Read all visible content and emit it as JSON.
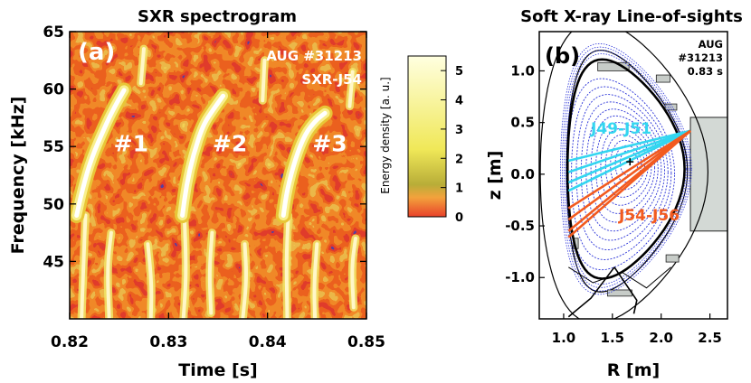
{
  "chart_data": [
    {
      "type": "heatmap",
      "title": "SXR spectrogram",
      "xlabel": "Time [s]",
      "ylabel": "Frequency [kHz]",
      "xlim": [
        0.82,
        0.85
      ],
      "ylim": [
        40,
        65
      ],
      "xticks": [
        "0.82",
        "0.83",
        "0.84",
        "0.85"
      ],
      "yticks": [
        "45",
        "50",
        "55",
        "60",
        "65"
      ],
      "panel_label": "(a)",
      "shot_text": [
        "AUG #31213",
        "SXR-J54"
      ],
      "colorbar": {
        "label": "Energy density [a. u.]",
        "ticks": [
          "0",
          "1",
          "2",
          "3",
          "4",
          "5"
        ],
        "range": [
          0,
          5.5
        ],
        "colors": [
          "#e8412a",
          "#f3a23c",
          "#b8ad38",
          "#f0e858",
          "#ffffe0"
        ]
      },
      "background_color": "#e0621e",
      "chirps": [
        {
          "label": "#1",
          "points": [
            [
              0.8207,
              49
            ],
            [
              0.8213,
              51.3
            ],
            [
              0.8222,
              54
            ],
            [
              0.8235,
              56.6
            ],
            [
              0.8245,
              58.4
            ],
            [
              0.8255,
              59.9
            ]
          ]
        },
        {
          "label": "#2",
          "points": [
            [
              0.8314,
              49
            ],
            [
              0.8318,
              51.6
            ],
            [
              0.8325,
              54.3
            ],
            [
              0.8335,
              56.9
            ],
            [
              0.8345,
              58.2
            ],
            [
              0.8355,
              59.4
            ]
          ]
        },
        {
          "label": "#3",
          "points": [
            [
              0.8416,
              49
            ],
            [
              0.842,
              51.3
            ],
            [
              0.8428,
              53.9
            ],
            [
              0.8438,
              56.1
            ],
            [
              0.8449,
              57.3
            ],
            [
              0.8458,
              57.9
            ]
          ]
        }
      ],
      "chirp_label_points": [
        [
          0.8262,
          54.6
        ],
        [
          0.8362,
          54.6
        ],
        [
          0.8463,
          54.6
        ]
      ],
      "noise_streaks": [
        [
          [
            0.8212,
            40
          ],
          [
            0.8214,
            45
          ],
          [
            0.8216,
            49
          ]
        ],
        [
          [
            0.824,
            40
          ],
          [
            0.8238,
            44.5
          ],
          [
            0.8242,
            47.5
          ]
        ],
        [
          [
            0.8282,
            40
          ],
          [
            0.8283,
            43
          ],
          [
            0.8279,
            46.5
          ]
        ],
        [
          [
            0.8315,
            40
          ],
          [
            0.8318,
            44
          ],
          [
            0.8316,
            49
          ]
        ],
        [
          [
            0.8343,
            40.5
          ],
          [
            0.8341,
            44
          ],
          [
            0.8344,
            47.5
          ]
        ],
        [
          [
            0.8375,
            40
          ],
          [
            0.8379,
            43.5
          ],
          [
            0.8377,
            46.5
          ]
        ],
        [
          [
            0.842,
            40
          ],
          [
            0.8419,
            45
          ],
          [
            0.8421,
            49
          ]
        ],
        [
          [
            0.8448,
            40
          ],
          [
            0.8447,
            43
          ],
          [
            0.845,
            46.5
          ]
        ],
        [
          [
            0.8487,
            41
          ],
          [
            0.8485,
            44.5
          ],
          [
            0.8489,
            47
          ]
        ],
        [
          [
            0.8272,
            60.5
          ],
          [
            0.8275,
            63.5
          ]
        ],
        [
          [
            0.8395,
            59
          ],
          [
            0.8397,
            62.5
          ]
        ],
        [
          [
            0.8483,
            58.5
          ],
          [
            0.8486,
            61.5
          ]
        ]
      ]
    },
    {
      "type": "diagram",
      "title": "Soft X-ray Line-of-sights",
      "xlabel": "R [m]",
      "ylabel": "z [m]",
      "xlim": [
        0.75,
        2.68
      ],
      "ylim": [
        -1.4,
        1.38
      ],
      "xticks": [
        "1.0",
        "1.5",
        "2.0",
        "2.5"
      ],
      "yticks": [
        "-1.0",
        "-0.5",
        "0.0",
        "0.5",
        "1.0"
      ],
      "panel_label": "(b)",
      "shot_text": [
        "AUG",
        "#31213",
        "0.83 s"
      ],
      "magnetic_axis": [
        1.68,
        0.12
      ],
      "flux_surfaces_count": 12,
      "camera_origin": [
        2.3,
        0.42
      ],
      "group_j49_j51": {
        "label": "J49-J51",
        "color": "#33d6f0",
        "endpoints": [
          [
            1.05,
            0.13
          ],
          [
            1.05,
            0.02
          ],
          [
            1.05,
            -0.08
          ],
          [
            1.05,
            -0.16
          ]
        ]
      },
      "group_j54_j56": {
        "label": "J54-J56",
        "color": "#f25a1f",
        "endpoints": [
          [
            1.05,
            -0.33
          ],
          [
            1.05,
            -0.44
          ],
          [
            1.05,
            -0.55
          ],
          [
            1.05,
            -0.61
          ]
        ]
      },
      "sxr_port_box": {
        "r": [
          2.3,
          2.68
        ],
        "z": [
          -0.55,
          0.55
        ]
      }
    }
  ]
}
